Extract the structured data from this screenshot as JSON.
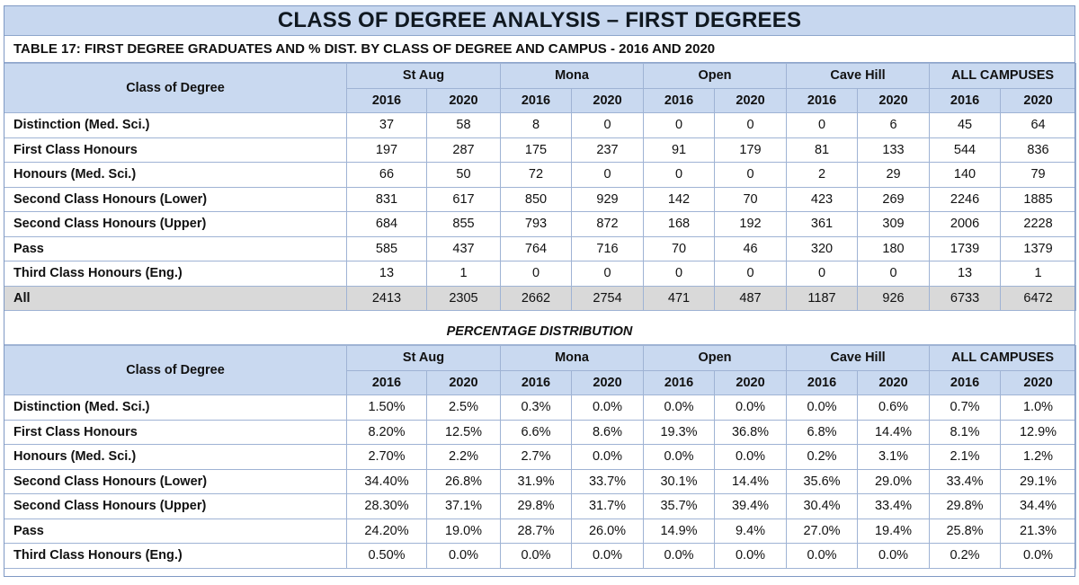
{
  "title": "CLASS OF DEGREE ANALYSIS – FIRST DEGREES",
  "subtitle": "TABLE 17: FIRST DEGREE GRADUATES AND % DIST. BY CLASS OF DEGREE AND CAMPUS - 2016 AND 2020",
  "corner_label": "Class of Degree",
  "campuses": [
    "St Aug",
    "Mona",
    "Open",
    "Cave Hill",
    "ALL CAMPUSES"
  ],
  "years": [
    "2016",
    "2020"
  ],
  "counts": [
    {
      "label": "Distinction (Med. Sci.)",
      "values": [
        "37",
        "58",
        "8",
        "0",
        "0",
        "0",
        "0",
        "6",
        "45",
        "64"
      ]
    },
    {
      "label": "First Class Honours",
      "values": [
        "197",
        "287",
        "175",
        "237",
        "91",
        "179",
        "81",
        "133",
        "544",
        "836"
      ]
    },
    {
      "label": "Honours (Med. Sci.)",
      "values": [
        "66",
        "50",
        "72",
        "0",
        "0",
        "0",
        "2",
        "29",
        "140",
        "79"
      ]
    },
    {
      "label": "Second Class Honours (Lower)",
      "values": [
        "831",
        "617",
        "850",
        "929",
        "142",
        "70",
        "423",
        "269",
        "2246",
        "1885"
      ]
    },
    {
      "label": "Second Class Honours (Upper)",
      "values": [
        "684",
        "855",
        "793",
        "872",
        "168",
        "192",
        "361",
        "309",
        "2006",
        "2228"
      ]
    },
    {
      "label": "Pass",
      "values": [
        "585",
        "437",
        "764",
        "716",
        "70",
        "46",
        "320",
        "180",
        "1739",
        "1379"
      ]
    },
    {
      "label": "Third Class Honours (Eng.)",
      "values": [
        "13",
        "1",
        "0",
        "0",
        "0",
        "0",
        "0",
        "0",
        "13",
        "1"
      ]
    },
    {
      "label": "All",
      "values": [
        "2413",
        "2305",
        "2662",
        "2754",
        "471",
        "487",
        "1187",
        "926",
        "6733",
        "6472"
      ]
    }
  ],
  "pct_caption": "PERCENTAGE DISTRIBUTION",
  "percentages": [
    {
      "label": "Distinction (Med. Sci.)",
      "values": [
        "1.50%",
        "2.5%",
        "0.3%",
        "0.0%",
        "0.0%",
        "0.0%",
        "0.0%",
        "0.6%",
        "0.7%",
        "1.0%"
      ]
    },
    {
      "label": "First Class Honours",
      "values": [
        "8.20%",
        "12.5%",
        "6.6%",
        "8.6%",
        "19.3%",
        "36.8%",
        "6.8%",
        "14.4%",
        "8.1%",
        "12.9%"
      ]
    },
    {
      "label": "Honours (Med. Sci.)",
      "values": [
        "2.70%",
        "2.2%",
        "2.7%",
        "0.0%",
        "0.0%",
        "0.0%",
        "0.2%",
        "3.1%",
        "2.1%",
        "1.2%"
      ]
    },
    {
      "label": "Second Class Honours (Lower)",
      "values": [
        "34.40%",
        "26.8%",
        "31.9%",
        "33.7%",
        "30.1%",
        "14.4%",
        "35.6%",
        "29.0%",
        "33.4%",
        "29.1%"
      ]
    },
    {
      "label": "Second Class Honours (Upper)",
      "values": [
        "28.30%",
        "37.1%",
        "29.8%",
        "31.7%",
        "35.7%",
        "39.4%",
        "30.4%",
        "33.4%",
        "29.8%",
        "34.4%"
      ]
    },
    {
      "label": "Pass",
      "values": [
        "24.20%",
        "19.0%",
        "28.7%",
        "26.0%",
        "14.9%",
        "9.4%",
        "27.0%",
        "19.4%",
        "25.8%",
        "21.3%"
      ]
    },
    {
      "label": "Third Class Honours (Eng.)",
      "values": [
        "0.50%",
        "0.0%",
        "0.0%",
        "0.0%",
        "0.0%",
        "0.0%",
        "0.0%",
        "0.0%",
        "0.2%",
        "0.0%"
      ]
    }
  ],
  "colors": {
    "header_fill": "#c9d9f0",
    "title_fill": "#c7d7ef",
    "total_row_fill": "#d9d9d9",
    "border": "#9fb3d4"
  }
}
